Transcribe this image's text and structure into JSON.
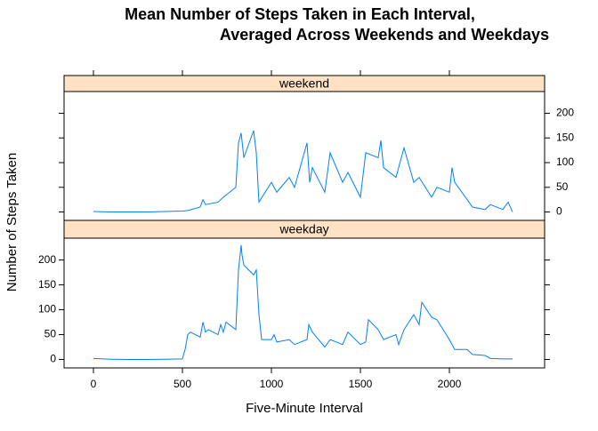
{
  "title": [
    "Mean Number of Steps Taken in Each Interval,",
    "Averaged Across Weekends and Weekdays"
  ],
  "xlabel": "Five-Minute Interval",
  "ylabel": "Number of Steps Taken",
  "chart_data": [
    {
      "type": "line",
      "strip": "weekend",
      "color": "#0080ff",
      "xtick_side": "top",
      "ytick_side": "right",
      "xlim": [
        -165,
        2535
      ],
      "ylim": [
        -17,
        244
      ],
      "xticks": [
        0,
        500,
        1000,
        1500,
        2000
      ],
      "yticks": [
        0,
        50,
        100,
        150,
        200
      ],
      "x": [
        0,
        100,
        200,
        300,
        400,
        500,
        530,
        600,
        615,
        630,
        700,
        730,
        800,
        815,
        830,
        845,
        900,
        915,
        930,
        1000,
        1030,
        1100,
        1130,
        1200,
        1215,
        1230,
        1300,
        1330,
        1400,
        1430,
        1500,
        1530,
        1600,
        1615,
        1630,
        1700,
        1730,
        1745,
        1800,
        1830,
        1900,
        1930,
        2000,
        2015,
        2030,
        2100,
        2130,
        2200,
        2230,
        2300,
        2330,
        2355
      ],
      "values": [
        1,
        0,
        0,
        0,
        1,
        2,
        3,
        10,
        25,
        15,
        20,
        30,
        50,
        140,
        160,
        110,
        165,
        120,
        20,
        60,
        40,
        70,
        50,
        140,
        60,
        90,
        40,
        120,
        60,
        80,
        30,
        120,
        110,
        145,
        90,
        70,
        110,
        130,
        60,
        70,
        30,
        50,
        40,
        90,
        60,
        25,
        10,
        5,
        15,
        5,
        20,
        0
      ]
    },
    {
      "type": "line",
      "strip": "weekday",
      "color": "#0080ff",
      "xtick_side": "bottom",
      "ytick_side": "left",
      "xlim": [
        -165,
        2535
      ],
      "ylim": [
        -17,
        244
      ],
      "xticks": [
        0,
        500,
        1000,
        1500,
        2000
      ],
      "yticks": [
        0,
        50,
        100,
        150,
        200
      ],
      "x": [
        0,
        100,
        200,
        300,
        400,
        500,
        515,
        530,
        545,
        600,
        615,
        630,
        645,
        700,
        715,
        730,
        745,
        800,
        815,
        830,
        835,
        845,
        900,
        915,
        930,
        945,
        1000,
        1015,
        1030,
        1100,
        1130,
        1200,
        1210,
        1230,
        1300,
        1330,
        1400,
        1430,
        1500,
        1530,
        1545,
        1600,
        1630,
        1700,
        1715,
        1745,
        1800,
        1830,
        1845,
        1900,
        1930,
        2000,
        2030,
        2100,
        2130,
        2200,
        2230,
        2300,
        2355
      ],
      "values": [
        2,
        0.5,
        0,
        0,
        0.5,
        1,
        20,
        50,
        55,
        45,
        75,
        55,
        60,
        50,
        70,
        55,
        75,
        60,
        180,
        230,
        210,
        190,
        170,
        180,
        90,
        40,
        40,
        50,
        35,
        40,
        30,
        40,
        70,
        55,
        25,
        40,
        30,
        55,
        30,
        35,
        80,
        60,
        40,
        50,
        30,
        60,
        90,
        70,
        115,
        85,
        80,
        40,
        20,
        20,
        10,
        8,
        2,
        1,
        1
      ]
    }
  ]
}
